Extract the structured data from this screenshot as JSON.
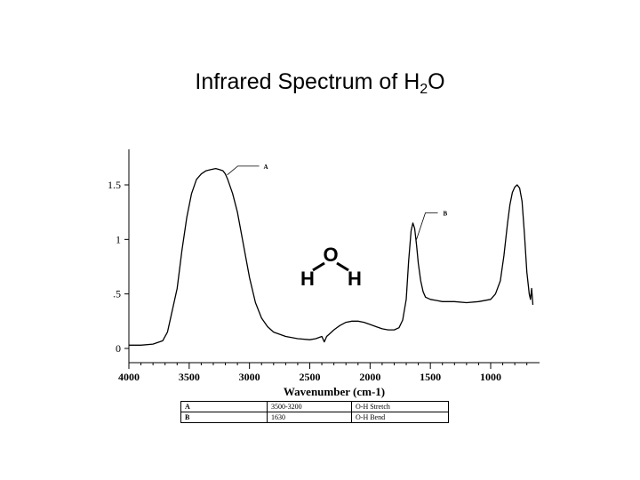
{
  "title": {
    "main": "Infrared Spectrum of H",
    "sub": "2",
    "tail": "O"
  },
  "molecule": {
    "top": "O",
    "left": "H",
    "right": "H"
  },
  "chart_data": {
    "type": "line",
    "title": "Infrared Spectrum of H2O",
    "xlabel": "Wavenumber (cm-1)",
    "ylabel": "",
    "xlim": [
      4000,
      650
    ],
    "ylim": [
      0,
      1.8
    ],
    "x_ticks": [
      4000,
      3500,
      3000,
      2500,
      2000,
      1500,
      1000
    ],
    "x_tick_labels": [
      "4000",
      "3500",
      "3000",
      "2500",
      "2000",
      "1500",
      "1000"
    ],
    "y_ticks": [
      0,
      0.5,
      1,
      1.5
    ],
    "y_tick_labels": [
      "0",
      ".5",
      "1",
      "1.5"
    ],
    "grid": false,
    "series": [
      {
        "x": [
          4000,
          3900,
          3800,
          3720,
          3680,
          3650,
          3600,
          3560,
          3520,
          3480,
          3440,
          3400,
          3360,
          3320,
          3280,
          3250,
          3220,
          3200,
          3180,
          3140,
          3100,
          3050,
          3000,
          2950,
          2900,
          2850,
          2800,
          2700,
          2600,
          2500,
          2450,
          2400,
          2380,
          2360,
          2340,
          2300,
          2250,
          2200,
          2150,
          2100,
          2050,
          2000,
          1950,
          1900,
          1850,
          1800,
          1760,
          1730,
          1700,
          1680,
          1660,
          1645,
          1630,
          1615,
          1600,
          1580,
          1560,
          1540,
          1500,
          1450,
          1400,
          1300,
          1200,
          1100,
          1000,
          960,
          920,
          890,
          860,
          840,
          820,
          800,
          780,
          760,
          740,
          720,
          700,
          680,
          670,
          660,
          650
        ],
        "y": [
          0.03,
          0.03,
          0.04,
          0.07,
          0.15,
          0.3,
          0.55,
          0.9,
          1.2,
          1.42,
          1.55,
          1.6,
          1.63,
          1.64,
          1.65,
          1.64,
          1.63,
          1.6,
          1.55,
          1.42,
          1.25,
          0.95,
          0.65,
          0.42,
          0.28,
          0.2,
          0.15,
          0.11,
          0.09,
          0.08,
          0.09,
          0.11,
          0.06,
          0.11,
          0.13,
          0.17,
          0.21,
          0.24,
          0.25,
          0.25,
          0.24,
          0.22,
          0.2,
          0.18,
          0.17,
          0.17,
          0.19,
          0.26,
          0.45,
          0.8,
          1.08,
          1.15,
          1.1,
          0.95,
          0.78,
          0.62,
          0.52,
          0.47,
          0.45,
          0.44,
          0.43,
          0.43,
          0.42,
          0.43,
          0.45,
          0.5,
          0.62,
          0.85,
          1.15,
          1.32,
          1.43,
          1.48,
          1.5,
          1.47,
          1.35,
          1.05,
          0.7,
          0.5,
          0.45,
          0.55,
          0.4
        ]
      }
    ],
    "annotations": [
      {
        "label": "A",
        "x": 3200,
        "y": 1.55
      },
      {
        "label": "B",
        "x": 1630,
        "y": 0.95
      }
    ],
    "table": {
      "rows": [
        {
          "key": "A",
          "range": "3500-3200",
          "assignment": "O-H Stretch"
        },
        {
          "key": "B",
          "range": "1630",
          "assignment": "O-H Bend"
        }
      ]
    }
  }
}
